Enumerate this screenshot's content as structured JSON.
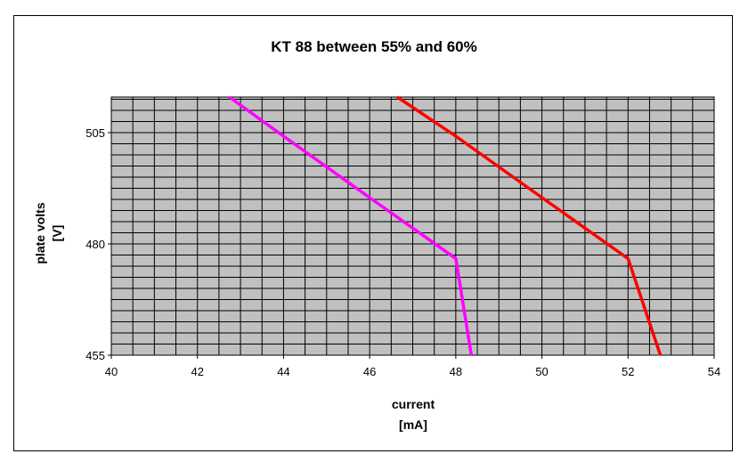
{
  "chart_data": {
    "type": "line",
    "title": "KT 88 between 55% and 60%",
    "xlabel": [
      "current",
      "[mA]"
    ],
    "ylabel": [
      "plate volts",
      "[V]"
    ],
    "xlim": [
      40,
      54
    ],
    "ylim": [
      455,
      513
    ],
    "x_ticks": [
      "40",
      "42",
      "44",
      "46",
      "48",
      "50",
      "52",
      "54"
    ],
    "y_ticks": [
      "455",
      "480",
      "505"
    ],
    "grid": true,
    "legend": "none",
    "colors": {
      "plot_bg": "#C0C0C0",
      "grid": "#000000"
    },
    "series": [
      {
        "color": "#FF00FF",
        "x": [
          42.74,
          44.0,
          46.0,
          48.0,
          48.36
        ],
        "y": [
          513,
          504.2,
          490.4,
          476.7,
          455
        ]
      },
      {
        "color": "#FF0000",
        "x": [
          46.64,
          48.0,
          50.0,
          52.0,
          52.75
        ],
        "y": [
          513,
          504.2,
          490.4,
          476.7,
          455
        ]
      }
    ]
  }
}
